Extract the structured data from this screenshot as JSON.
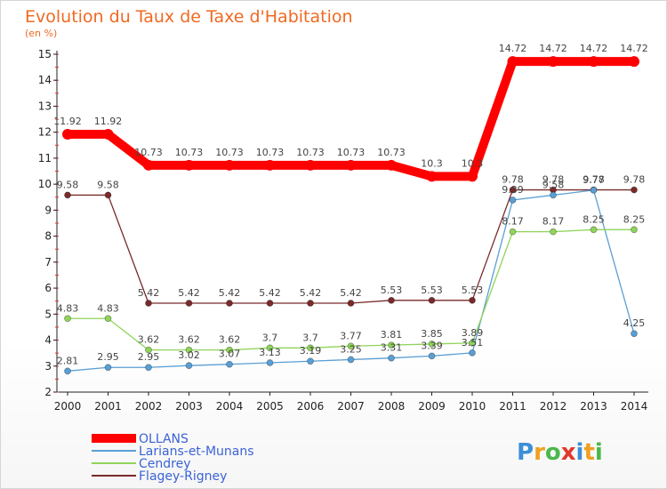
{
  "chart_data": {
    "type": "line",
    "title": "Evolution du Taux de Taxe d'Habitation",
    "unit": "(en %)",
    "x": [
      "2000",
      "2001",
      "2002",
      "2003",
      "2004",
      "2005",
      "2006",
      "2007",
      "2008",
      "2009",
      "2010",
      "2011",
      "2012",
      "2013",
      "2014"
    ],
    "ylim": [
      2,
      15
    ],
    "yticks": [
      2,
      3,
      4,
      5,
      6,
      7,
      8,
      9,
      10,
      11,
      12,
      13,
      14,
      15
    ],
    "grid": false,
    "legend_position": "bottom-left",
    "series": [
      {
        "name": "OLLANS",
        "color": "#ff0000",
        "values": [
          11.92,
          11.92,
          10.73,
          10.73,
          10.73,
          10.73,
          10.73,
          10.73,
          10.73,
          10.3,
          10.3,
          14.72,
          14.72,
          14.72,
          14.72
        ],
        "labels": [
          "11.92",
          "11.92",
          "10.73",
          "10.73",
          "10.73",
          "10.73",
          "10.73",
          "10.73",
          "10.73",
          "10.3",
          "10.3",
          "14.72",
          "14.72",
          "14.72",
          "14.72"
        ]
      },
      {
        "name": "Larians-et-Munans",
        "color": "#5a9fd4",
        "values": [
          2.81,
          2.95,
          2.95,
          3.02,
          3.07,
          3.13,
          3.19,
          3.25,
          3.31,
          3.39,
          3.51,
          9.39,
          9.58,
          9.77,
          4.25
        ],
        "labels": [
          "2.81",
          "2.95",
          "2.95",
          "3.02",
          "3.07",
          "3.13",
          "3.19",
          "3.25",
          "3.31",
          "3.39",
          "3.51",
          "9.39",
          "9.58",
          "9.77",
          "4.25"
        ]
      },
      {
        "name": "Cendrey",
        "color": "#8fd45a",
        "values": [
          4.83,
          4.83,
          3.62,
          3.62,
          3.62,
          3.7,
          3.7,
          3.77,
          3.81,
          3.85,
          3.89,
          8.17,
          8.17,
          8.25,
          8.25
        ],
        "labels": [
          "4.83",
          "4.83",
          "3.62",
          "3.62",
          "3.62",
          "3.7",
          "3.7",
          "3.77",
          "3.81",
          "3.85",
          "3.89",
          "8.17",
          "8.17",
          "8.25",
          "8.25"
        ]
      },
      {
        "name": "Flagey-Rigney",
        "color": "#7a2a2a",
        "values": [
          9.58,
          9.58,
          5.42,
          5.42,
          5.42,
          5.42,
          5.42,
          5.42,
          5.53,
          5.53,
          5.53,
          9.78,
          9.78,
          9.78,
          9.78
        ],
        "labels": [
          "9.58",
          "9.58",
          "5.42",
          "5.42",
          "5.42",
          "5.42",
          "5.42",
          "5.42",
          "5.53",
          "5.53",
          "5.53",
          "9.78",
          "9.78",
          "9.78",
          "9.78"
        ]
      }
    ]
  },
  "logo": {
    "text": "Proxiti",
    "letters": [
      {
        "ch": "P",
        "color": "#3b8fd6"
      },
      {
        "ch": "r",
        "color": "#f0a020"
      },
      {
        "ch": "o",
        "color": "#4bb84b"
      },
      {
        "ch": "x",
        "color": "#e0392b"
      },
      {
        "ch": "i",
        "color": "#3b8fd6"
      },
      {
        "ch": "t",
        "color": "#f0a020"
      },
      {
        "ch": "i",
        "color": "#4bb84b"
      }
    ]
  }
}
